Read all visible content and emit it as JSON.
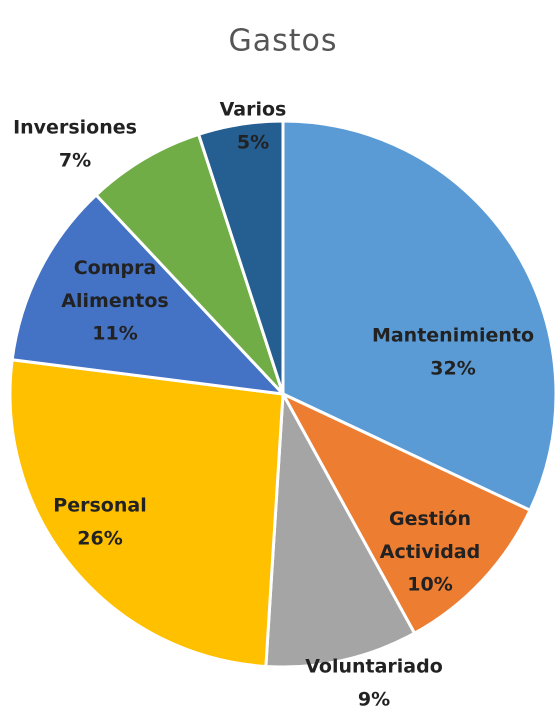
{
  "chart_data": {
    "type": "pie",
    "title": "Gastos",
    "categories": [
      "Mantenimiento",
      "Gestión Actividad",
      "Voluntariado",
      "Personal",
      "Compra Alimentos",
      "Inversiones",
      "Varios"
    ],
    "values": [
      32,
      10,
      9,
      26,
      11,
      7,
      5
    ],
    "value_labels": [
      "32%",
      "10%",
      "9%",
      "26%",
      "11%",
      "7%",
      "5%"
    ],
    "colors": [
      "#5b9bd5",
      "#ed7d31",
      "#a5a5a5",
      "#ffc000",
      "#4472c4",
      "#70ad47",
      "#255e91"
    ]
  }
}
